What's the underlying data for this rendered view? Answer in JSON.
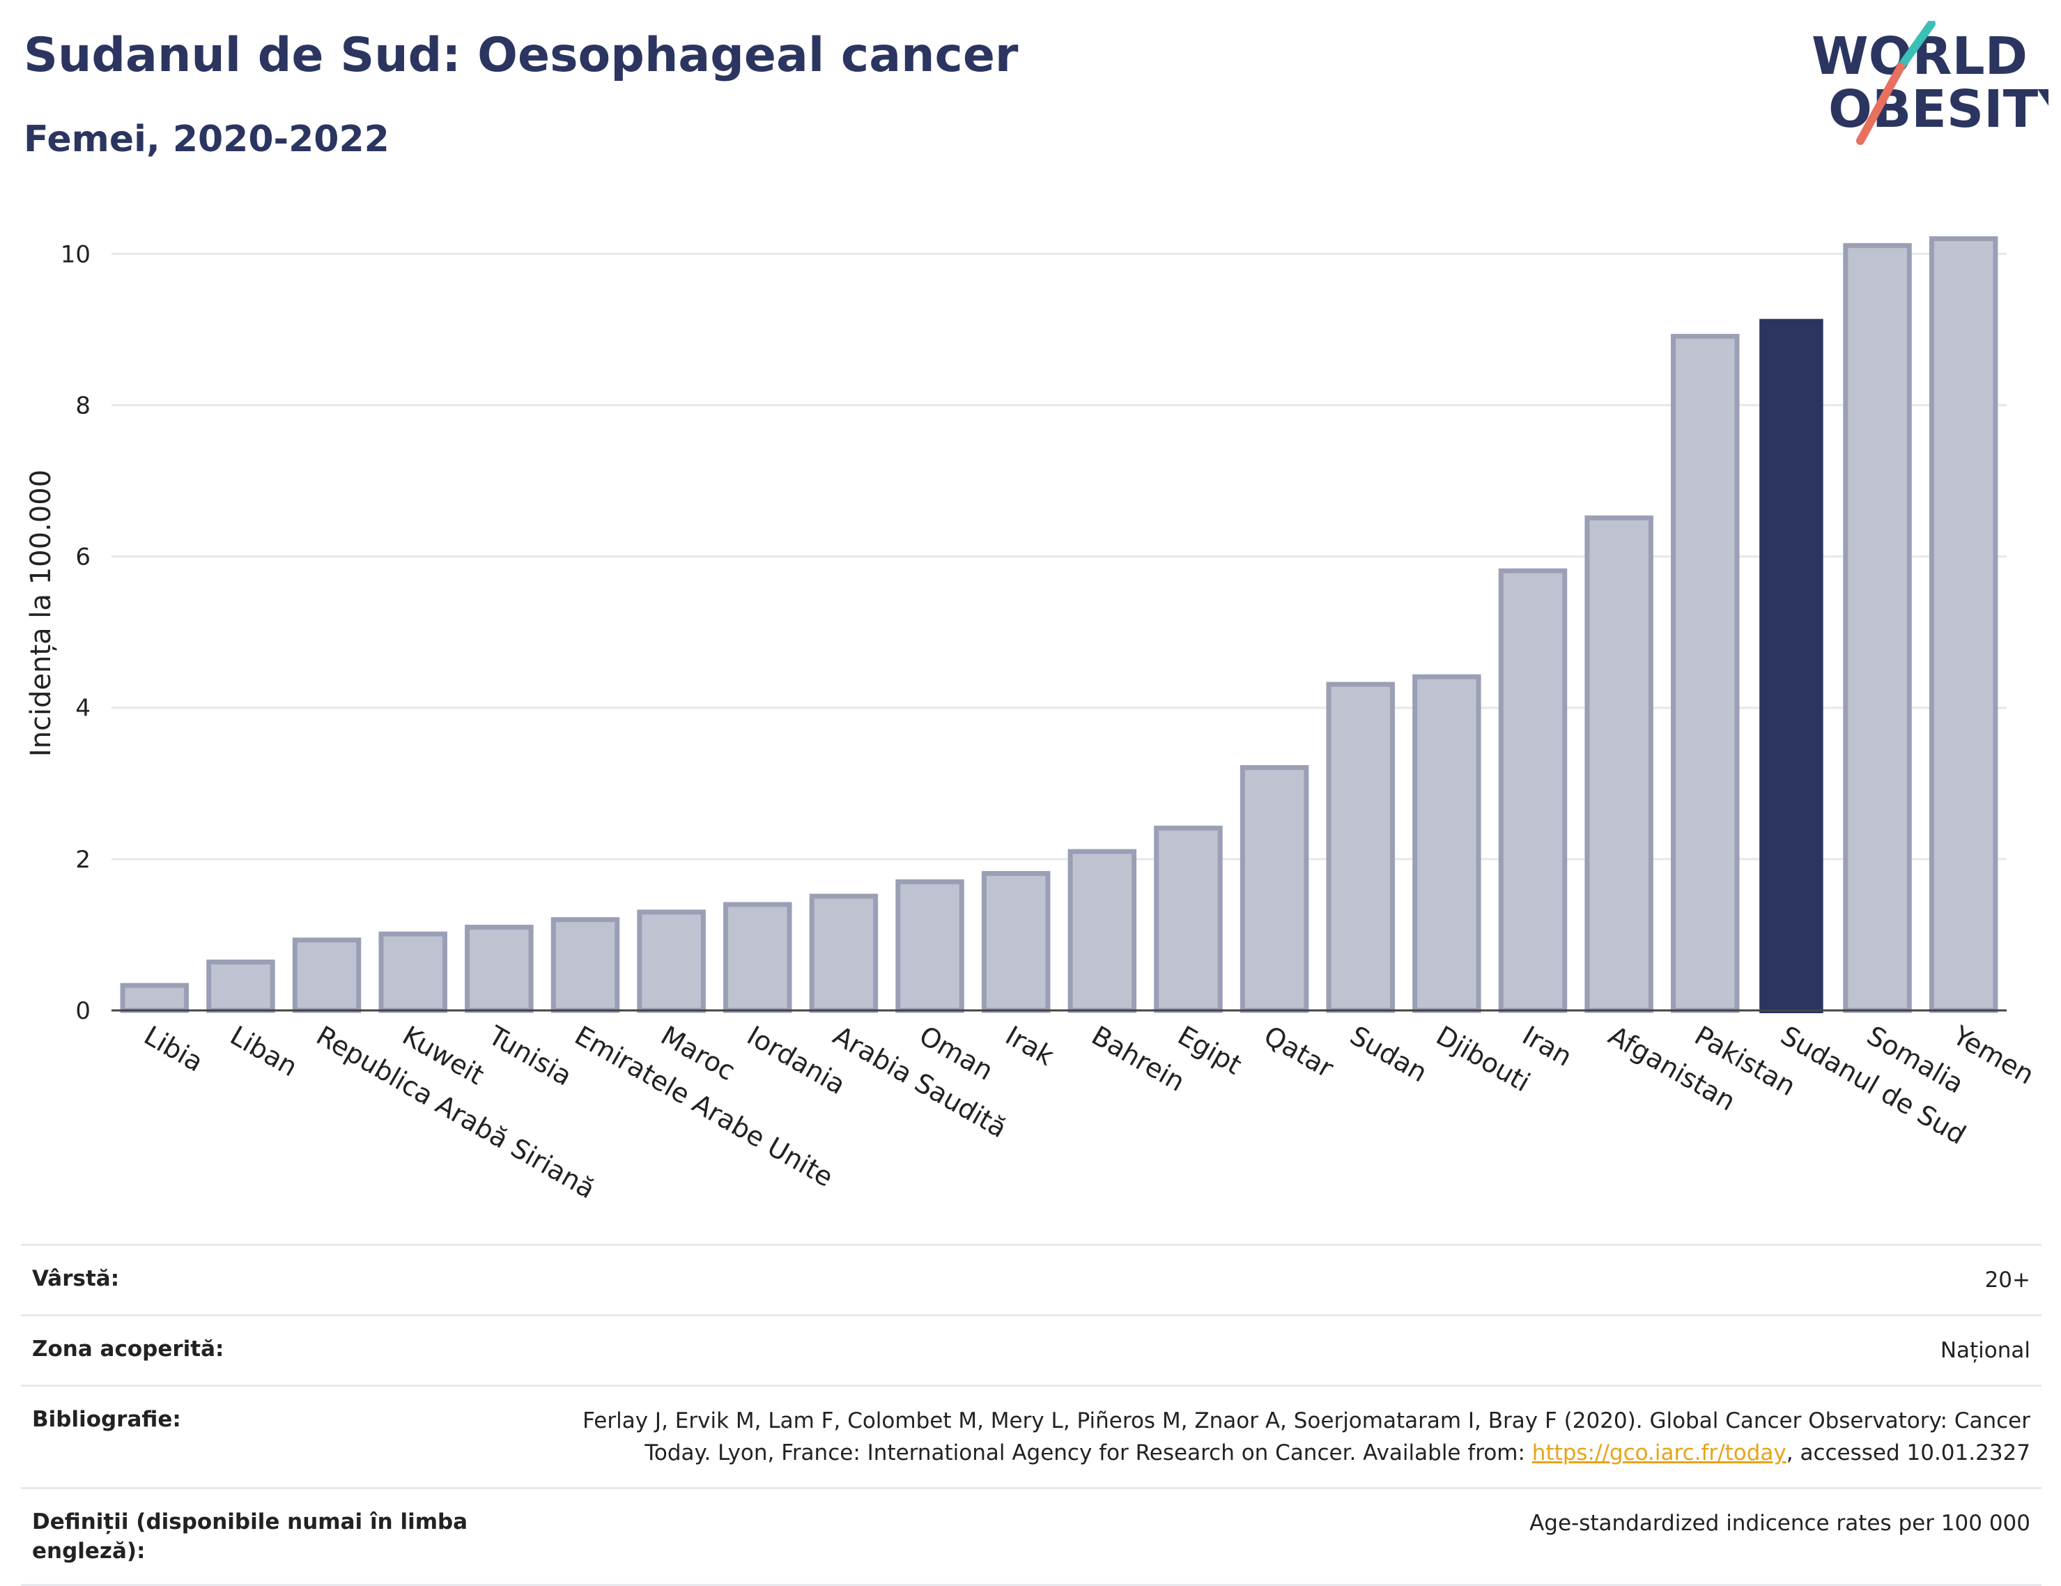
{
  "header": {
    "title": "Sudanul de Sud: Oesophageal cancer",
    "subtitle": "Femei, 2020-2022"
  },
  "logo": {
    "line1": "WORLD",
    "line2": "OBESITY",
    "colors": {
      "text": "#2b3560",
      "slash_top": "#3bbfb6",
      "slash_bottom": "#e8705f"
    }
  },
  "chart_data": {
    "type": "bar",
    "ylabel": "Incidența la 100.000",
    "xlabel": "",
    "ylim": [
      0,
      10.5
    ],
    "yticks": [
      0,
      2,
      4,
      6,
      8,
      10
    ],
    "grid": true,
    "highlight": "Sudanul de Sud",
    "colors": {
      "bar": "#bfc2d0",
      "bar_edge": "#9a9fb5",
      "highlight": "#2b3560",
      "grid": "#e6e7ec"
    },
    "categories": [
      "Libia",
      "Liban",
      "Republica Arabă Siriană",
      "Kuweit",
      "Tunisia",
      "Emiratele Arabe Unite",
      "Maroc",
      "Iordania",
      "Arabia Saudită",
      "Oman",
      "Irak",
      "Bahrein",
      "Egipt",
      "Qatar",
      "Sudan",
      "Djibouti",
      "Iran",
      "Afganistan",
      "Pakistan",
      "Sudanul de Sud",
      "Somalia",
      "Yemen"
    ],
    "values": [
      0.33,
      0.64,
      0.93,
      1.01,
      1.1,
      1.2,
      1.3,
      1.4,
      1.51,
      1.7,
      1.81,
      2.1,
      2.41,
      3.21,
      4.31,
      4.41,
      5.81,
      6.51,
      8.91,
      9.14,
      10.11,
      10.2
    ]
  },
  "meta": {
    "rows": [
      {
        "label": "Vârstă:",
        "value": "20+"
      },
      {
        "label": "Zona acoperită:",
        "value": "Național"
      },
      {
        "label": "Bibliografie:",
        "value_line1": "Ferlay J, Ervik M, Lam F, Colombet M, Mery L, Piñeros M, Znaor A, Soerjomataram I, Bray F (2020). Global Cancer Observatory: Cancer",
        "value_line2_pre": "Today. Lyon, France: International Agency for Research on Cancer. Available from: ",
        "link": "https://gco.iarc.fr/today",
        "value_line2_post": ", accessed 10.01.2327"
      },
      {
        "label_line1": "Definiții (disponibile numai în limba",
        "label_line2": "engleză):",
        "value": "Age-standardized indicence rates per 100 000"
      }
    ]
  }
}
